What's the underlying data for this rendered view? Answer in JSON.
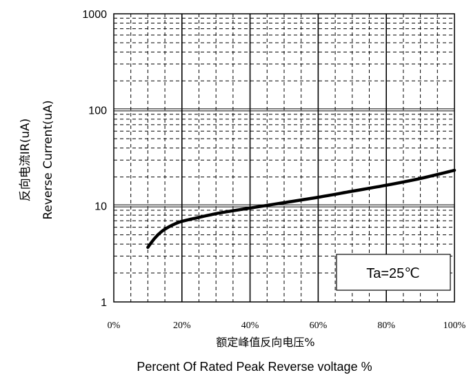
{
  "chart_data": {
    "type": "line",
    "ylabel_cn": "反向电流IR(uA)",
    "ylabel_en": "Reverse Current(uA)",
    "xlabel_cn": "额定峰值反向电压%",
    "xlabel_en": "Percent Of Rated Peak Reverse voltage %",
    "x_tick_labels": [
      "0%",
      "20%",
      "40%",
      "60%",
      "80%",
      "100%"
    ],
    "y_tick_labels": [
      "1",
      "10",
      "100",
      "1000"
    ],
    "xlim": [
      0,
      100
    ],
    "ylim": [
      1,
      1000
    ],
    "y_scale": "log",
    "grid": true,
    "annotation": "Ta=25℃",
    "series": [
      {
        "x": [
          10,
          12,
          14,
          16,
          18,
          20,
          25,
          30,
          35,
          40,
          50,
          60,
          70,
          80,
          90,
          100
        ],
        "y": [
          3.7,
          4.6,
          5.4,
          6.0,
          6.5,
          6.9,
          7.6,
          8.3,
          8.9,
          9.5,
          10.8,
          12.3,
          14.2,
          16.4,
          19.3,
          23.5
        ]
      }
    ]
  }
}
